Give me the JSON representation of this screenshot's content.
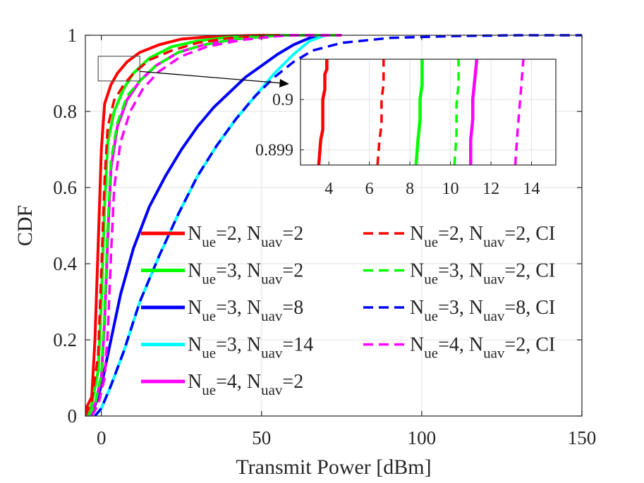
{
  "chart_data": {
    "type": "line",
    "xlabel": "Transmit Power [dBm]",
    "ylabel": "CDF",
    "xlim": [
      -5,
      150
    ],
    "ylim": [
      0,
      1
    ],
    "xticks": [
      "0",
      "50",
      "100",
      "150"
    ],
    "yticks": [
      "0",
      "0.2",
      "0.4",
      "0.6",
      "0.8",
      "1"
    ],
    "grid": true,
    "legend_position": "center-right",
    "series": [
      {
        "name": "N_ue=2, N_uav=2",
        "label_parts": {
          "a": "N",
          "a_sub": "ue",
          "b": "=2, N",
          "b_sub": "uav",
          "c": "=2"
        },
        "color": "#ff0000",
        "style": "solid",
        "x": [
          -6,
          -3,
          -2,
          -1,
          0,
          1,
          3,
          5,
          8,
          12,
          18,
          25,
          35,
          50,
          75
        ],
        "y": [
          0,
          0.05,
          0.2,
          0.45,
          0.7,
          0.82,
          0.87,
          0.9,
          0.93,
          0.955,
          0.975,
          0.99,
          0.997,
          1,
          1
        ]
      },
      {
        "name": "N_ue=3, N_uav=2",
        "label_parts": {
          "a": "N",
          "a_sub": "ue",
          "b": "=3, N",
          "b_sub": "uav",
          "c": "=2"
        },
        "color": "#00ff00",
        "style": "solid",
        "x": [
          -5,
          -3,
          -1,
          0,
          1,
          2,
          4,
          7,
          10,
          15,
          22,
          30,
          40,
          55,
          75
        ],
        "y": [
          0,
          0.03,
          0.12,
          0.3,
          0.55,
          0.72,
          0.8,
          0.86,
          0.9,
          0.94,
          0.97,
          0.985,
          0.995,
          1,
          1
        ]
      },
      {
        "name": "N_ue=3, N_uav=8",
        "label_parts": {
          "a": "N",
          "a_sub": "ue",
          "b": "=3, N",
          "b_sub": "uav",
          "c": "=8"
        },
        "color": "#0000ff",
        "style": "solid",
        "x": [
          -3,
          0,
          3,
          6,
          10,
          15,
          20,
          25,
          30,
          35,
          40,
          45,
          50,
          55,
          60,
          65,
          68
        ],
        "y": [
          0,
          0.08,
          0.2,
          0.32,
          0.44,
          0.55,
          0.63,
          0.7,
          0.76,
          0.81,
          0.85,
          0.89,
          0.92,
          0.95,
          0.975,
          0.993,
          1
        ]
      },
      {
        "name": "N_ue=3, N_uav=14",
        "label_parts": {
          "a": "N",
          "a_sub": "ue",
          "b": "=3, N",
          "b_sub": "uav",
          "c": "=14"
        },
        "color": "#00ffff",
        "style": "solid",
        "x": [
          -2,
          0,
          3,
          7,
          12,
          18,
          24,
          30,
          36,
          42,
          48,
          54,
          60,
          65,
          70
        ],
        "y": [
          0,
          0.02,
          0.08,
          0.17,
          0.3,
          0.42,
          0.53,
          0.63,
          0.71,
          0.78,
          0.84,
          0.9,
          0.95,
          0.985,
          1
        ]
      },
      {
        "name": "N_ue=4, N_uav=2",
        "label_parts": {
          "a": "N",
          "a_sub": "ue",
          "b": "=4, N",
          "b_sub": "uav",
          "c": "=2"
        },
        "color": "#ff00ff",
        "style": "solid",
        "x": [
          -4,
          -2,
          0,
          1,
          2,
          3,
          5,
          8,
          12,
          17,
          24,
          32,
          42,
          56,
          75
        ],
        "y": [
          0,
          0.03,
          0.1,
          0.25,
          0.47,
          0.65,
          0.76,
          0.83,
          0.88,
          0.92,
          0.955,
          0.975,
          0.99,
          1,
          1
        ]
      },
      {
        "name": "N_ue=2, N_uav=2, CI",
        "label_parts": {
          "a": "N",
          "a_sub": "ue",
          "b": "=2, N",
          "b_sub": "uav",
          "c": "=2, CI"
        },
        "color": "#ff0000",
        "style": "dashed",
        "x": [
          -5,
          -3,
          -1,
          0,
          1,
          2,
          4,
          7,
          10,
          15,
          22,
          30,
          40,
          55,
          75
        ],
        "y": [
          0,
          0.04,
          0.16,
          0.38,
          0.62,
          0.76,
          0.83,
          0.87,
          0.9,
          0.935,
          0.96,
          0.98,
          0.993,
          1,
          1
        ]
      },
      {
        "name": "N_ue=3, N_uav=2, CI",
        "label_parts": {
          "a": "N",
          "a_sub": "ue",
          "b": "=3, N",
          "b_sub": "uav",
          "c": "=2, CI"
        },
        "color": "#00ff00",
        "style": "dashed",
        "x": [
          -4,
          -2,
          0,
          1,
          2,
          3,
          5,
          8,
          12,
          17,
          24,
          32,
          42,
          56,
          75
        ],
        "y": [
          0,
          0.03,
          0.11,
          0.27,
          0.5,
          0.67,
          0.77,
          0.84,
          0.88,
          0.92,
          0.955,
          0.975,
          0.99,
          1,
          1
        ]
      },
      {
        "name": "N_ue=3, N_uav=8, CI",
        "label_parts": {
          "a": "N",
          "a_sub": "ue",
          "b": "=3, N",
          "b_sub": "uav",
          "c": "=8, CI"
        },
        "color": "#0000ff",
        "style": "dashed",
        "x": [
          -2,
          0,
          3,
          7,
          12,
          18,
          24,
          30,
          36,
          42,
          48,
          54,
          60,
          66,
          75,
          90,
          110,
          130,
          150
        ],
        "y": [
          0,
          0.02,
          0.08,
          0.17,
          0.3,
          0.42,
          0.53,
          0.63,
          0.71,
          0.78,
          0.84,
          0.89,
          0.93,
          0.96,
          0.98,
          0.993,
          0.998,
          1,
          1
        ]
      },
      {
        "name": "N_ue=4, N_uav=2, CI",
        "label_parts": {
          "a": "N",
          "a_sub": "ue",
          "b": "=4, N",
          "b_sub": "uav",
          "c": "=2, CI"
        },
        "color": "#ff00ff",
        "style": "dashed",
        "x": [
          -3,
          -1,
          1,
          2,
          3,
          4,
          6,
          9,
          13,
          18,
          25,
          33,
          44,
          58,
          75
        ],
        "y": [
          0,
          0.03,
          0.1,
          0.22,
          0.42,
          0.6,
          0.72,
          0.8,
          0.86,
          0.905,
          0.945,
          0.97,
          0.988,
          1,
          1
        ]
      }
    ],
    "inset": {
      "xlim": [
        2.6,
        15.2
      ],
      "ylim": [
        0.8987,
        0.9008
      ],
      "xticks": [
        "4",
        "6",
        "8",
        "10",
        "12",
        "14"
      ],
      "yticks": [
        "0.899",
        "0.9"
      ],
      "grid": true,
      "series": [
        {
          "color": "#ff0000",
          "style": "solid",
          "x": [
            3.5,
            3.6,
            3.7,
            3.7,
            3.8,
            3.8,
            3.9,
            3.9
          ],
          "y": [
            0.8987,
            0.8992,
            0.8994,
            0.9,
            0.9002,
            0.9005,
            0.9006,
            0.9008
          ]
        },
        {
          "color": "#ff0000",
          "style": "dashed",
          "x": [
            6.4,
            6.5,
            6.6,
            6.6,
            6.7,
            6.7
          ],
          "y": [
            0.8987,
            0.8992,
            0.8995,
            0.9,
            0.9003,
            0.9008
          ]
        },
        {
          "color": "#00ff00",
          "style": "solid",
          "x": [
            8.3,
            8.4,
            8.5,
            8.5,
            8.6,
            8.6
          ],
          "y": [
            0.8987,
            0.8992,
            0.8996,
            0.9,
            0.9003,
            0.9008
          ]
        },
        {
          "color": "#00ff00",
          "style": "dashed",
          "x": [
            10.2,
            10.3,
            10.3,
            10.4,
            10.4
          ],
          "y": [
            0.8987,
            0.8993,
            0.8999,
            0.9003,
            0.9008
          ]
        },
        {
          "color": "#ff00ff",
          "style": "solid",
          "x": [
            11.0,
            11.0,
            11.1,
            11.1,
            11.2,
            11.3
          ],
          "y": [
            0.8987,
            0.8992,
            0.8996,
            0.9,
            0.9004,
            0.9008
          ]
        },
        {
          "color": "#ff00ff",
          "style": "dashed",
          "x": [
            13.2,
            13.3,
            13.4,
            13.5,
            13.6
          ],
          "y": [
            0.8987,
            0.8993,
            0.8998,
            0.9003,
            0.9008
          ]
        }
      ]
    },
    "zoom_box": {
      "x0": -1,
      "x1": 12,
      "y0": 0.88,
      "y1": 0.945
    }
  }
}
